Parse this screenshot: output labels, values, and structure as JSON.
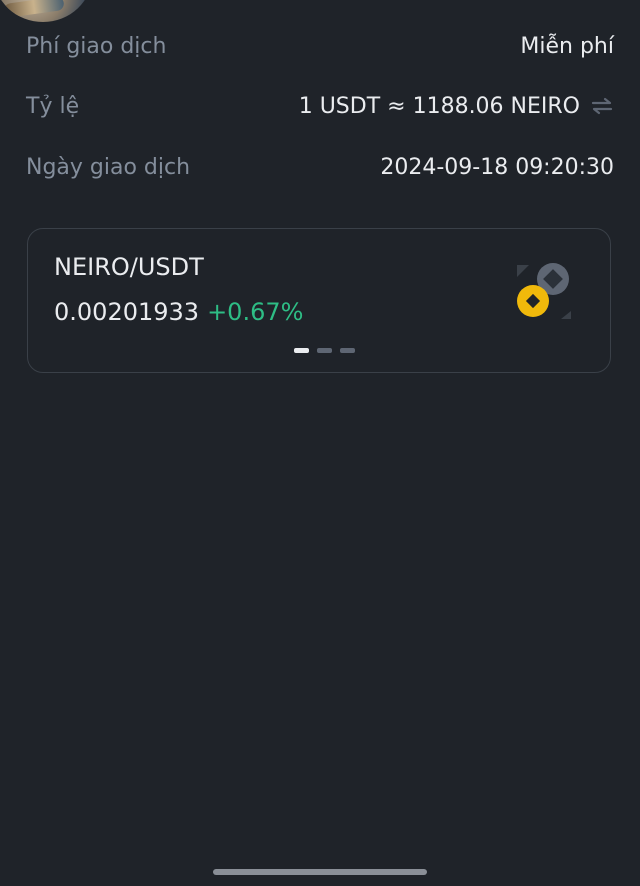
{
  "details": {
    "fee_label": "Phí giao dịch",
    "fee_value": "Miễn phí",
    "rate_label": "Tỷ lệ",
    "rate_value": "1 USDT ≈ 1188.06 NEIRO",
    "date_label": "Ngày giao dịch",
    "date_value": "2024-09-18 09:20:30"
  },
  "card": {
    "pair": "NEIRO/USDT",
    "price": "0.00201933",
    "change": "+0.67%",
    "change_color": "#2ebd85",
    "pager": {
      "count": 3,
      "active_index": 0
    }
  },
  "icons": {
    "swap": "swap-arrows-icon",
    "coin": "binance-coin-icon"
  },
  "colors": {
    "background": "#1f2329",
    "label": "#848e9c",
    "value": "#eaecef",
    "accent_yellow": "#f0b90b"
  }
}
